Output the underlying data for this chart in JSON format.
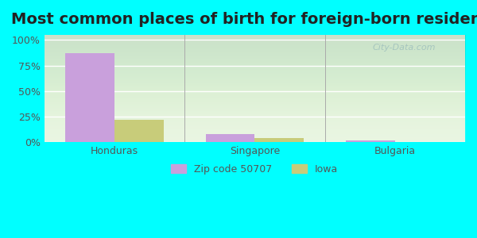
{
  "title": "Most common places of birth for foreign-born residents",
  "categories": [
    "Honduras",
    "Singapore",
    "Bulgaria"
  ],
  "zip_values": [
    87,
    8,
    2
  ],
  "iowa_values": [
    22,
    4,
    0.5
  ],
  "zip_color": "#c9a0dc",
  "iowa_color": "#c8cc7a",
  "background_outer": "#00FFFF",
  "background_inner": "#e8f5e0",
  "yticks": [
    0,
    25,
    50,
    75,
    100
  ],
  "ylim": [
    0,
    105
  ],
  "legend_labels": [
    "Zip code 50707",
    "Iowa"
  ],
  "bar_width": 0.35,
  "title_fontsize": 14,
  "axis_tick_fontsize": 9,
  "legend_fontsize": 9,
  "watermark": "City-Data.com"
}
